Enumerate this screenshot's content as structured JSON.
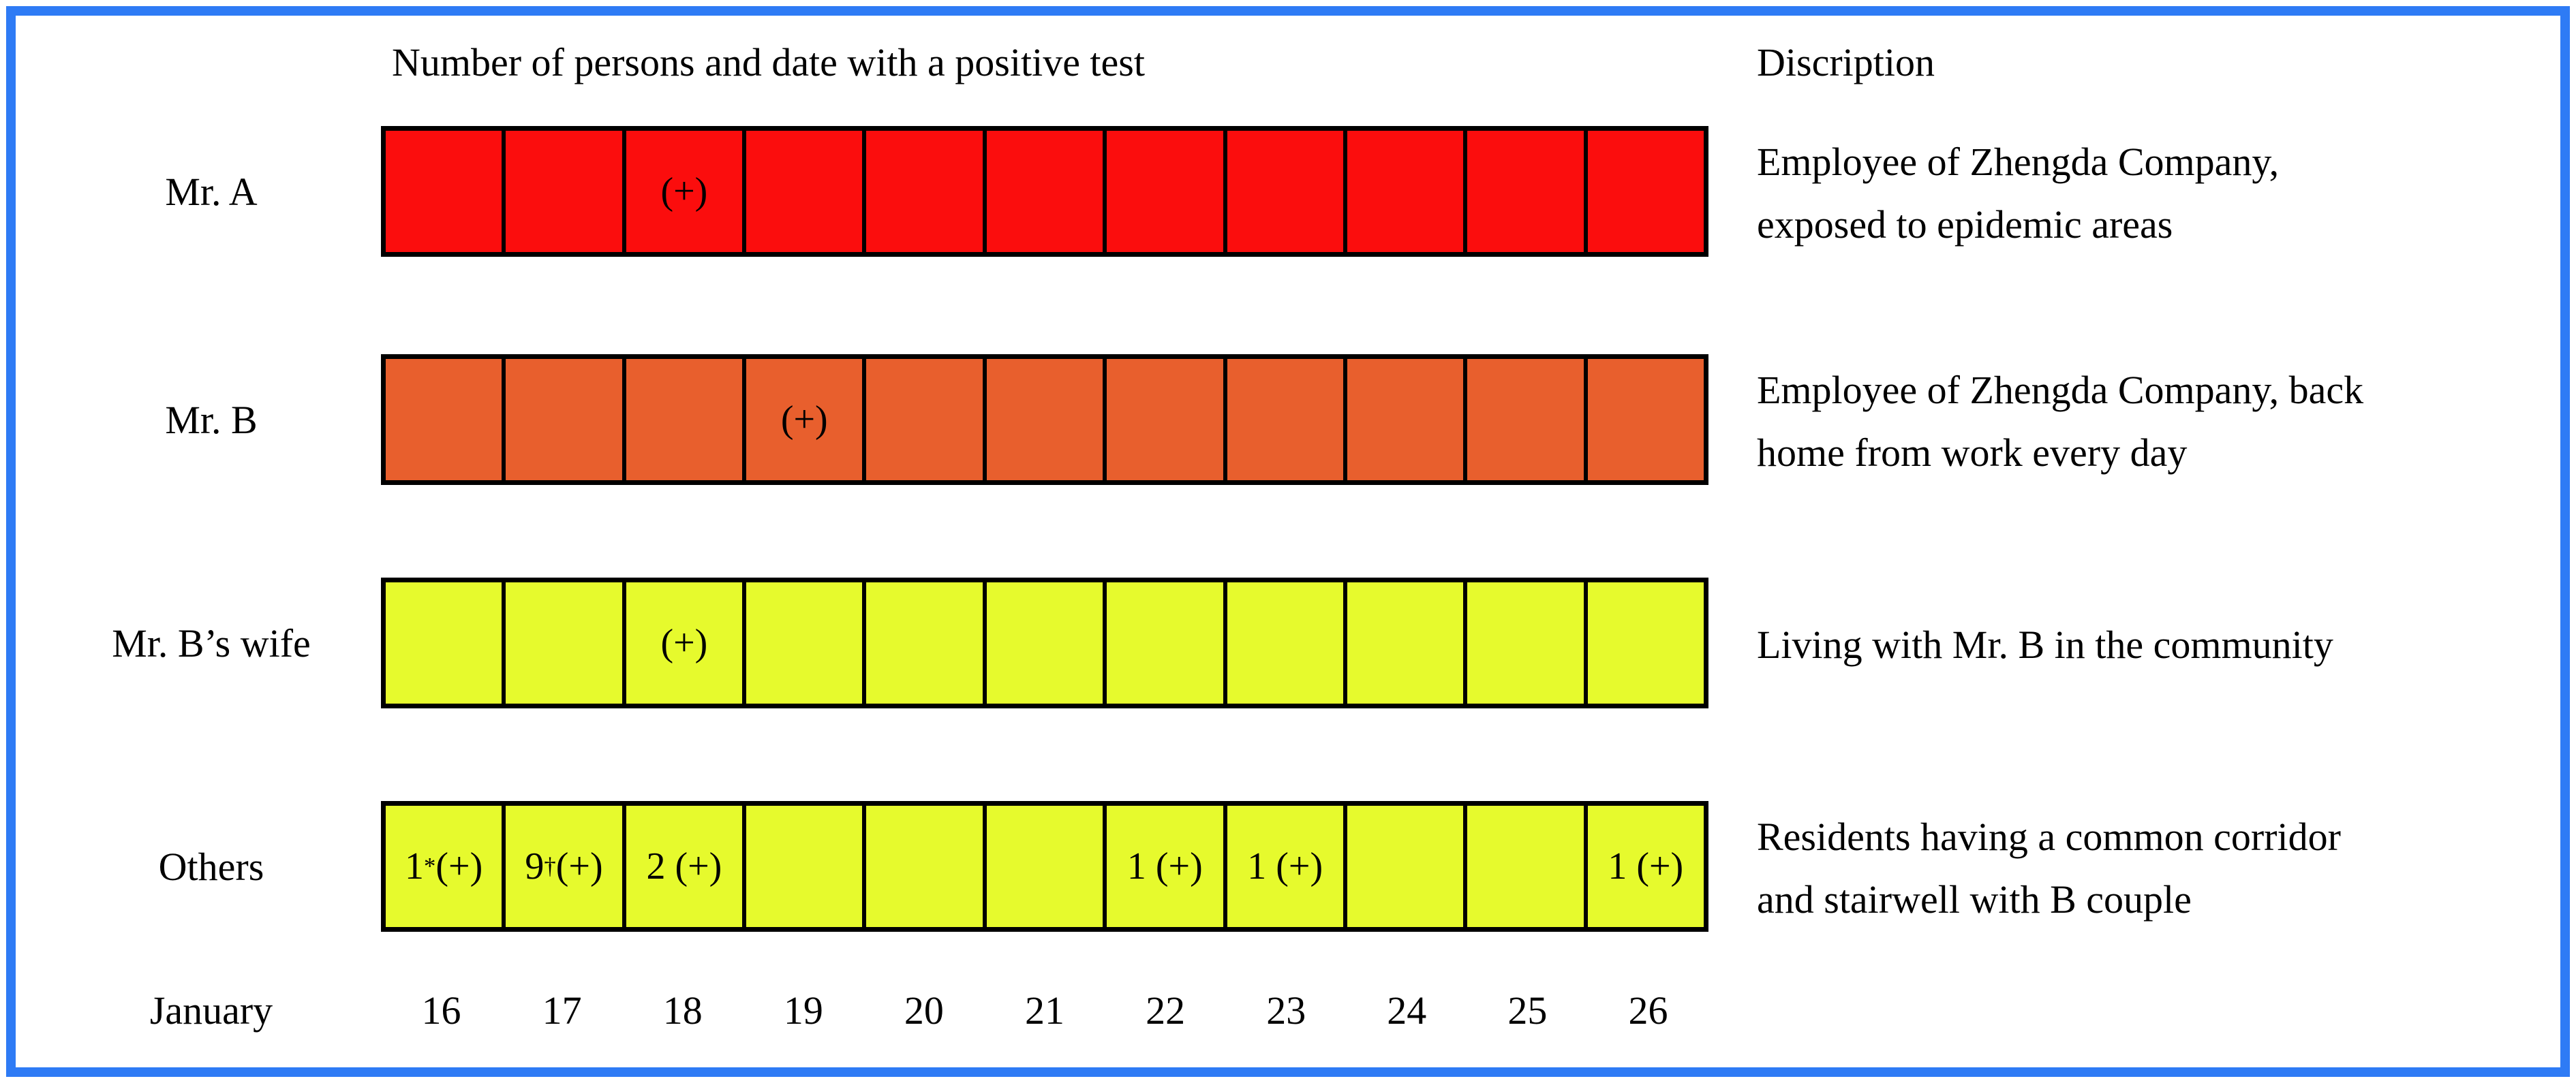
{
  "title": "Number of persons and date with a positive test",
  "description_header": "Discription",
  "axis": {
    "month": "January",
    "days": [
      "16",
      "17",
      "18",
      "19",
      "20",
      "21",
      "22",
      "23",
      "24",
      "25",
      "26"
    ]
  },
  "colors": {
    "red": "#FB0D0D",
    "orange": "#E85F2D",
    "yellow": "#E6FA2D",
    "frame_blue": "#2E7BF5",
    "grid_black": "#000000"
  },
  "rows": [
    {
      "label": "Mr. A",
      "color": "#FB0D0D",
      "description_lines": [
        "Employee of Zhengda Company,",
        "exposed to epidemic areas"
      ],
      "cells": [
        "",
        "",
        "(+)",
        "",
        "",
        "",
        "",
        "",
        "",
        "",
        ""
      ]
    },
    {
      "label": "Mr. B",
      "color": "#E85F2D",
      "description_lines": [
        "Employee of Zhengda Company, back",
        "home from work every day"
      ],
      "cells": [
        "",
        "",
        "",
        "(+)",
        "",
        "",
        "",
        "",
        "",
        "",
        ""
      ]
    },
    {
      "label": "Mr. B’s wife",
      "color": "#E6FA2D",
      "description_lines": [
        "Living with Mr. B in the community",
        ""
      ],
      "cells": [
        "",
        "",
        "(+)",
        "",
        "",
        "",
        "",
        "",
        "",
        "",
        ""
      ]
    },
    {
      "label": "Others",
      "color": "#E6FA2D",
      "description_lines": [
        "Residents having a common corridor",
        "and stairwell with B couple"
      ],
      "cells": [
        {
          "pre": "1",
          "sup": "*",
          "post": "(+)"
        },
        {
          "pre": "9",
          "sup": "†",
          "post": "(+)"
        },
        {
          "pre": "2 ",
          "sup": "",
          "post": "(+)"
        },
        {
          "pre": "",
          "sup": "",
          "post": ""
        },
        {
          "pre": "",
          "sup": "",
          "post": ""
        },
        {
          "pre": "",
          "sup": "",
          "post": ""
        },
        {
          "pre": "1 ",
          "sup": "",
          "post": "(+)"
        },
        {
          "pre": "1 ",
          "sup": "",
          "post": "(+)"
        },
        {
          "pre": "",
          "sup": "",
          "post": ""
        },
        {
          "pre": "",
          "sup": "",
          "post": ""
        },
        {
          "pre": "1 ",
          "sup": "",
          "post": "(+)"
        }
      ]
    }
  ],
  "chart_data": {
    "type": "table",
    "title": "Number of persons and date with a positive test",
    "description_column_header": "Discription",
    "x_axis_label": "January",
    "categories": [
      "16",
      "17",
      "18",
      "19",
      "20",
      "21",
      "22",
      "23",
      "24",
      "25",
      "26"
    ],
    "grid": true,
    "legend": "none",
    "rows": [
      {
        "name": "Mr. A",
        "color": "#FB0D0D",
        "cell_labels": [
          "",
          "",
          "(+)",
          "",
          "",
          "",
          "",
          "",
          "",
          "",
          ""
        ],
        "positive_dates": [
          "January 18"
        ],
        "description": "Employee of Zhengda Company, exposed to epidemic areas"
      },
      {
        "name": "Mr. B",
        "color": "#E85F2D",
        "cell_labels": [
          "",
          "",
          "",
          "(+)",
          "",
          "",
          "",
          "",
          "",
          "",
          ""
        ],
        "positive_dates": [
          "January 19"
        ],
        "description": "Employee of Zhengda Company, back home from work every day"
      },
      {
        "name": "Mr. B’s wife",
        "color": "#E6FA2D",
        "cell_labels": [
          "",
          "",
          "(+)",
          "",
          "",
          "",
          "",
          "",
          "",
          "",
          ""
        ],
        "positive_dates": [
          "January 18"
        ],
        "description": "Living with Mr. B in the community"
      },
      {
        "name": "Others",
        "color": "#E6FA2D",
        "cell_labels": [
          "1*(+)",
          "9†(+)",
          "2 (+)",
          "",
          "",
          "",
          "1 (+)",
          "1 (+)",
          "",
          "",
          "1 (+)"
        ],
        "counts": [
          1,
          9,
          2,
          0,
          0,
          0,
          1,
          1,
          0,
          0,
          1
        ],
        "positive_dates": [
          "January 16",
          "January 17",
          "January 18",
          "January 22",
          "January 23",
          "January 26"
        ],
        "description": "Residents having a common corridor and stairwell with B couple"
      }
    ]
  }
}
